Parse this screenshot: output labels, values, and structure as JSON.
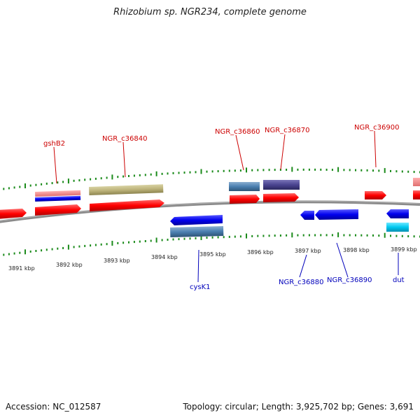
{
  "title": "Rhizobium sp. NGR234, complete genome",
  "footer": {
    "accession": "Accession: NC_012587",
    "summary": "Topology: circular; Length: 3,925,702 bp; Genes: 3,691"
  },
  "colors": {
    "label_forward": "#cc0000",
    "label_reverse": "#0000bb",
    "backbone": "#7a7a7a",
    "tick": "#1a8a1a",
    "cds_forward": "#ff0000",
    "cds_reverse": "#0000ee"
  },
  "map": {
    "scale_labels": [
      "3891 kbp",
      "3892 kbp",
      "3893 kbp",
      "3894 kbp",
      "3895 kbp",
      "3896 kbp",
      "3897 kbp",
      "3898 kbp",
      "3899 kbp"
    ],
    "gene_labels": [
      {
        "text": "gshB2",
        "strand": "forward"
      },
      {
        "text": "NGR_c36840",
        "strand": "forward"
      },
      {
        "text": "NGR_c36860",
        "strand": "forward"
      },
      {
        "text": "NGR_c36870",
        "strand": "forward"
      },
      {
        "text": "NGR_c36900",
        "strand": "forward"
      },
      {
        "text": "cysK1",
        "strand": "reverse"
      },
      {
        "text": "NGR_c36880",
        "strand": "reverse"
      },
      {
        "text": "NGR_c36890",
        "strand": "reverse"
      },
      {
        "text": "dut",
        "strand": "reverse"
      }
    ]
  }
}
